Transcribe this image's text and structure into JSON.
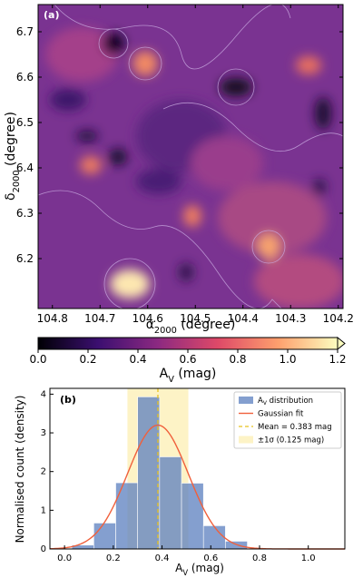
{
  "chart_data": [
    {
      "type": "heatmap",
      "panel_label": "(a)",
      "xlabel": "α_2000 (degree)",
      "ylabel": "δ_2000 (degree)",
      "xlim": [
        104.83,
        104.19
      ],
      "ylim": [
        6.09,
        6.76
      ],
      "xticks": [
        104.8,
        104.7,
        104.6,
        104.5,
        104.4,
        104.3,
        104.2
      ],
      "yticks": [
        6.2,
        6.3,
        6.4,
        6.5,
        6.6,
        6.7
      ],
      "colorbar": {
        "label": "A_V (mag)",
        "lim": [
          0,
          1.2
        ],
        "ticks": [
          {
            "value": 0,
            "label": "0.0"
          },
          0.2,
          0.4,
          0.6,
          0.8,
          {
            "value": 1,
            "label": "1.0"
          },
          1.2
        ],
        "colors": [
          "#000004",
          "#3b0f70",
          "#8c2981",
          "#de4968",
          "#fe9f6d",
          "#fcfdbf"
        ]
      }
    },
    {
      "type": "histogram",
      "panel_label": "(b)",
      "name": "A_V distribution",
      "color": "#5b7fbf",
      "xlabel": "A_V (mag)",
      "ylabel": "Normalised count (density)",
      "bins": [
        0.03,
        0.12,
        0.21,
        0.3,
        0.39,
        0.48,
        0.57,
        0.66,
        0.75
      ],
      "values": [
        0.1,
        0.67,
        1.71,
        3.93,
        2.38,
        1.7,
        0.6,
        0.2
      ],
      "xlim": [
        -0.06,
        1.15
      ],
      "ylim": [
        0,
        4.15
      ],
      "xticks": [
        {
          "value": 0,
          "label": "0.0"
        },
        0.2,
        0.4,
        0.6,
        0.8,
        {
          "value": 1,
          "label": "1.0"
        }
      ],
      "yticks": [
        0,
        1,
        2,
        3,
        4
      ],
      "legend": "upper right",
      "fit": {
        "name": "Gaussian fit",
        "color": "#f0603c",
        "mean": 0.383,
        "sigma": 0.125,
        "peak": 3.2
      },
      "mean_line": {
        "name": "Mean = 0.383 mag",
        "color": "#e8c21e",
        "value": 0.383
      },
      "band": {
        "name": "±1σ (0.125 mag)",
        "color": "#fdf3c6",
        "range": [
          0.258,
          0.508
        ]
      }
    }
  ]
}
